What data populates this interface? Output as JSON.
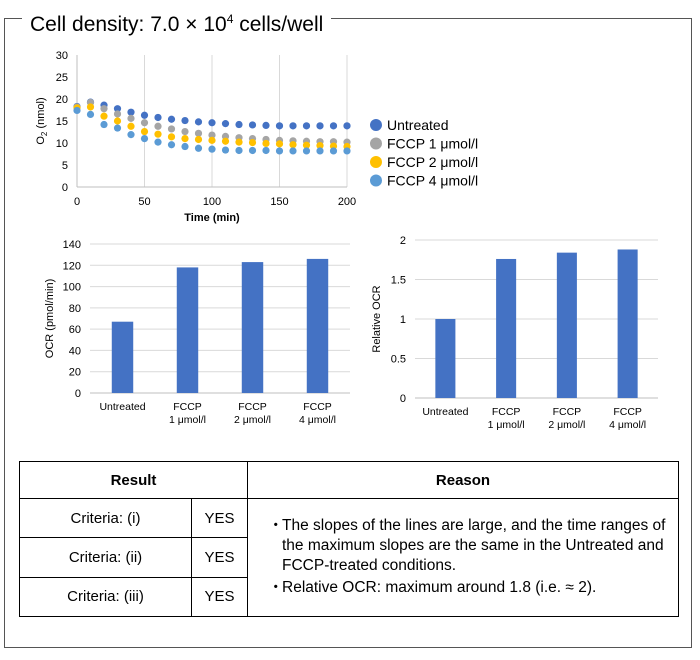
{
  "page": {
    "title_prefix": "Cell density: 7.0",
    "title_times": "×",
    "title_base": "10",
    "title_exp": "4",
    "title_suffix": " cells/well"
  },
  "colors": {
    "untreated": "#4472C4",
    "fccp1": "#A5A5A5",
    "fccp2": "#FFC000",
    "fccp4": "#5B9BD5",
    "bar": "#4472C4",
    "grid": "#D9D9D9"
  },
  "chart_data": [
    {
      "type": "scatter",
      "title": "",
      "xlabel": "Time (min)",
      "ylabel_main": "O",
      "ylabel_sub": "2",
      "ylabel_rest": " (nmol)",
      "xlim": [
        0,
        200
      ],
      "ylim": [
        0,
        30
      ],
      "xticks": [
        0,
        50,
        100,
        150,
        200
      ],
      "yticks": [
        0,
        5,
        10,
        15,
        20,
        25,
        30
      ],
      "grid": "vertical",
      "legend": "right",
      "x": [
        0,
        10,
        20,
        30,
        40,
        50,
        60,
        70,
        80,
        90,
        100,
        110,
        120,
        130,
        140,
        150,
        160,
        170,
        180,
        190,
        200
      ],
      "series": [
        {
          "name": "Untreated",
          "color_key": "untreated",
          "values": [
            18.3,
            19.3,
            18.6,
            17.8,
            17.0,
            16.3,
            15.8,
            15.4,
            15.1,
            14.8,
            14.6,
            14.4,
            14.2,
            14.1,
            14.0,
            13.9,
            13.9,
            13.9,
            13.9,
            13.9,
            13.9
          ]
        },
        {
          "name": "FCCP 1 μmol/l",
          "color_key": "fccp1",
          "values": [
            18.2,
            19.2,
            17.8,
            16.6,
            15.6,
            14.6,
            13.8,
            13.2,
            12.6,
            12.2,
            11.8,
            11.5,
            11.2,
            11.0,
            10.8,
            10.6,
            10.5,
            10.4,
            10.3,
            10.3,
            10.2
          ]
        },
        {
          "name": "FCCP 2 μmol/l",
          "color_key": "fccp2",
          "values": [
            18.0,
            18.2,
            16.1,
            15.0,
            13.8,
            12.6,
            12.0,
            11.4,
            11.0,
            10.8,
            10.6,
            10.4,
            10.2,
            10.1,
            9.9,
            9.8,
            9.6,
            9.5,
            9.4,
            9.3,
            9.2
          ]
        },
        {
          "name": "FCCP 4 μmol/l",
          "color_key": "fccp4",
          "values": [
            17.4,
            16.5,
            14.2,
            13.4,
            11.9,
            11.0,
            10.2,
            9.6,
            9.2,
            8.8,
            8.6,
            8.4,
            8.3,
            8.3,
            8.3,
            8.2,
            8.2,
            8.2,
            8.2,
            8.2,
            8.2
          ]
        }
      ]
    },
    {
      "type": "bar",
      "title": "",
      "ylabel": "OCR (pmol/min)",
      "ylim": [
        0,
        140
      ],
      "yticks": [
        0,
        20,
        40,
        60,
        80,
        100,
        120,
        140
      ],
      "grid": "horizontal",
      "categories": [
        [
          "Untreated"
        ],
        [
          "FCCP",
          "1 μmol/l"
        ],
        [
          "FCCP",
          "2 μmol/l"
        ],
        [
          "FCCP",
          "4 μmol/l"
        ]
      ],
      "values": [
        67,
        118,
        123,
        126
      ]
    },
    {
      "type": "bar",
      "title": "",
      "ylabel": "Relative OCR",
      "ylim": [
        0,
        2
      ],
      "yticks": [
        0,
        0.5,
        1,
        1.5,
        2
      ],
      "yticklabels": [
        "0",
        "0.5",
        "1",
        "1.5",
        "2"
      ],
      "grid": "horizontal",
      "categories": [
        [
          "Untreated"
        ],
        [
          "FCCP",
          "1 μmol/l"
        ],
        [
          "FCCP",
          "2 μmol/l"
        ],
        [
          "FCCP",
          "4 μmol/l"
        ]
      ],
      "values": [
        1.0,
        1.76,
        1.84,
        1.88
      ]
    }
  ],
  "table": {
    "header_result": "Result",
    "header_reason": "Reason",
    "rows": [
      {
        "criteria": "Criteria: (i)",
        "answer": "YES"
      },
      {
        "criteria": "Criteria: (ii)",
        "answer": "YES"
      },
      {
        "criteria": "Criteria: (iii)",
        "answer": "YES"
      }
    ],
    "bullet": "・",
    "reasons": [
      "The slopes of the lines are large, and the time ranges of the maximum slopes are the same in the Untreated and FCCP-treated conditions.",
      "Relative OCR: maximum around 1.8 (i.e. ≈ 2)."
    ]
  }
}
